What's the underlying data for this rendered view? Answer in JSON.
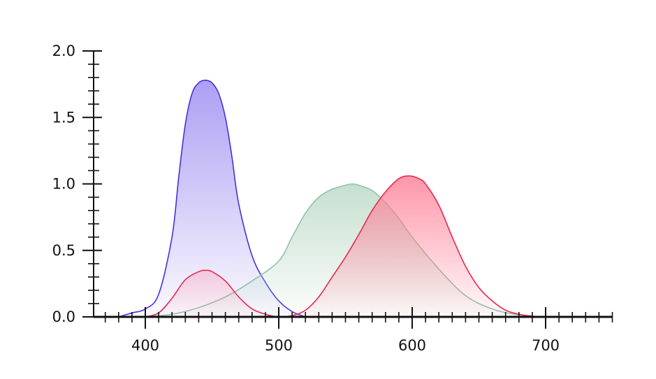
{
  "chart_data": {
    "type": "area",
    "title": "",
    "xlabel": "",
    "ylabel": "",
    "xlim": [
      362,
      750
    ],
    "ylim": [
      0,
      2.0
    ],
    "x_ticks": [
      400,
      500,
      600,
      700
    ],
    "x_tick_labels": [
      "400",
      "500",
      "600",
      "700"
    ],
    "y_ticks": [
      0.0,
      0.5,
      1.0,
      1.5,
      2.0
    ],
    "y_tick_labels": [
      "0.0",
      "0.5",
      "1.0",
      "1.5",
      "2.0"
    ],
    "grid": false,
    "legend": "none",
    "series": [
      {
        "id": "blue",
        "color": "#4a2fe0",
        "fill_top": "#9a88f0",
        "x": [
          380,
          390,
          400,
          410,
          420,
          425,
          430,
          435,
          440,
          445,
          450,
          455,
          460,
          465,
          470,
          480,
          490,
          500,
          510,
          520
        ],
        "y": [
          0.0,
          0.03,
          0.06,
          0.17,
          0.6,
          1.05,
          1.45,
          1.68,
          1.76,
          1.78,
          1.76,
          1.68,
          1.5,
          1.2,
          0.85,
          0.46,
          0.26,
          0.12,
          0.04,
          0.0
        ]
      },
      {
        "id": "green",
        "color": "#8fc2a6",
        "fill_top": "#b8d8c4",
        "x": [
          400,
          420,
          440,
          460,
          480,
          500,
          510,
          520,
          530,
          540,
          550,
          555,
          560,
          570,
          580,
          590,
          600,
          620,
          640,
          660,
          680,
          700
        ],
        "y": [
          0.0,
          0.02,
          0.07,
          0.15,
          0.27,
          0.42,
          0.6,
          0.78,
          0.9,
          0.96,
          0.99,
          1.0,
          0.99,
          0.95,
          0.86,
          0.74,
          0.6,
          0.36,
          0.16,
          0.06,
          0.015,
          0.0
        ]
      },
      {
        "id": "red",
        "color": "#e8294d",
        "fill_top": "#ff7d95",
        "x": [
          400,
          410,
          420,
          430,
          440,
          445,
          450,
          460,
          470,
          480,
          490,
          500,
          510,
          520,
          530,
          540,
          550,
          560,
          570,
          580,
          590,
          598,
          605,
          610,
          620,
          630,
          640,
          650,
          660,
          670,
          680,
          690,
          700
        ],
        "y": [
          0.0,
          0.03,
          0.14,
          0.28,
          0.34,
          0.35,
          0.34,
          0.27,
          0.15,
          0.06,
          0.02,
          0.0,
          0.01,
          0.05,
          0.15,
          0.3,
          0.45,
          0.62,
          0.8,
          0.94,
          1.04,
          1.06,
          1.04,
          1.0,
          0.84,
          0.6,
          0.38,
          0.22,
          0.12,
          0.05,
          0.02,
          0.005,
          0.0
        ]
      }
    ]
  }
}
